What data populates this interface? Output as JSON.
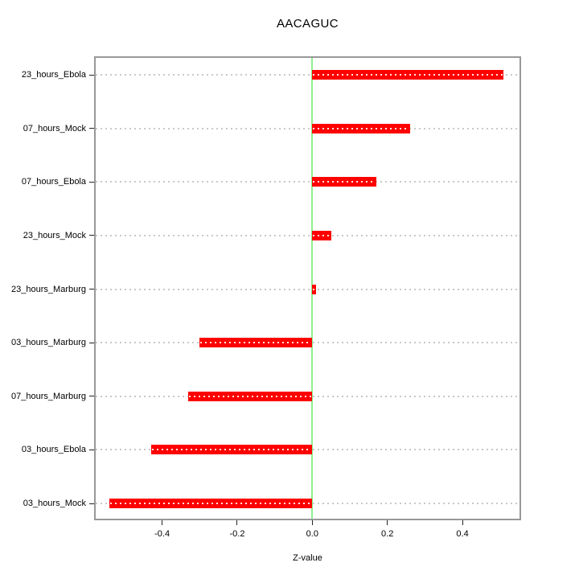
{
  "window": {
    "background": "#ffffff"
  },
  "chart_data": {
    "type": "bar",
    "orientation": "horizontal",
    "title": "AACAGUC",
    "xlabel": "Z-value",
    "categories": [
      "23_hours_Ebola",
      "07_hours_Mock",
      "07_hours_Ebola",
      "23_hours_Mock",
      "23_hours_Marburg",
      "03_hours_Marburg",
      "07_hours_Marburg",
      "03_hours_Ebola",
      "03_hours_Mock"
    ],
    "values": [
      0.51,
      0.26,
      0.17,
      0.05,
      0.01,
      -0.3,
      -0.33,
      -0.43,
      -0.54
    ],
    "category_order": "top to bottom",
    "xticks": [
      -0.4,
      -0.2,
      0,
      0.2,
      0.4
    ],
    "xtick_labels": [
      "-0.4",
      "-0.2",
      "0.0",
      "0.2",
      "0.4"
    ],
    "xlim": [
      -0.577,
      0.552
    ],
    "grid": "dotted horizontal gridline at each category",
    "legend": "none",
    "zero_reference_line": 0,
    "colors": {
      "bar": "#ff0000",
      "bar_dot_overlay": "#ffffff",
      "zero_line": "#90ee90",
      "gridline": "#c8c8c8",
      "frame": "#989898",
      "tick": "#222222",
      "text": "#000000"
    }
  }
}
